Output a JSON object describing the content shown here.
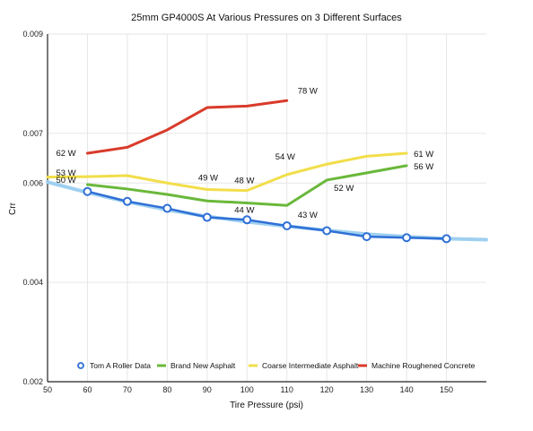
{
  "chart_data": {
    "type": "line",
    "title": "25mm GP4000S At Various Pressures on 3 Different Surfaces",
    "xlabel": "Tire Pressure (psi)",
    "ylabel": "Crr",
    "xlim": [
      50,
      160
    ],
    "ylim": [
      0.002,
      0.009
    ],
    "x_ticks": [
      50,
      60,
      70,
      80,
      90,
      100,
      110,
      120,
      130,
      140,
      150
    ],
    "y_ticks": [
      0.002,
      0.004,
      0.006,
      0.007,
      0.009
    ],
    "y_tick_labels": [
      "0.002",
      "0.004",
      "0.006",
      "0.007",
      "0.009"
    ],
    "grid": true,
    "legend_position": "bottom",
    "series": [
      {
        "name": "Tom A Roller Data",
        "color": "#2f6fd6",
        "marker": "circle",
        "x": [
          60,
          70,
          80,
          90,
          100,
          110,
          120,
          130,
          140,
          150
        ],
        "y": [
          0.00583,
          0.00563,
          0.00549,
          0.00531,
          0.00526,
          0.00514,
          0.00504,
          0.00492,
          0.0049,
          0.00488
        ]
      },
      {
        "name": "Brand New Asphalt",
        "color": "#6ab83a",
        "x": [
          60,
          70,
          80,
          90,
          100,
          110,
          120,
          140
        ],
        "y": [
          0.00597,
          0.00588,
          0.00577,
          0.00564,
          0.0056,
          0.00555,
          0.00606,
          0.00635
        ]
      },
      {
        "name": "Coarse Intermediate Asphalt",
        "color": "#f2de4a",
        "x": [
          50,
          60,
          70,
          80,
          90,
          100,
          110,
          120,
          130,
          140
        ],
        "y": [
          0.00612,
          0.00613,
          0.00615,
          0.006,
          0.00587,
          0.00585,
          0.00617,
          0.00638,
          0.00654,
          0.0066
        ]
      },
      {
        "name": "Machine Roughened Concrete",
        "color": "#d93b2b",
        "x": [
          60,
          70,
          80,
          90,
          100,
          110
        ],
        "y": [
          0.0066,
          0.00672,
          0.00707,
          0.00752,
          0.00755,
          0.00766
        ]
      }
    ],
    "trend_line": {
      "color": "#9fd0f0",
      "x": [
        50,
        60,
        70,
        80,
        90,
        100,
        110,
        120,
        130,
        140,
        150,
        160
      ],
      "y": [
        0.00602,
        0.00581,
        0.00562,
        0.00546,
        0.00533,
        0.00522,
        0.00513,
        0.00505,
        0.00497,
        0.00492,
        0.00488,
        0.00486
      ]
    },
    "annotations": [
      {
        "text": "62 W",
        "x": 60,
        "y": 0.0066
      },
      {
        "text": "78 W",
        "x": 110,
        "y": 0.00766
      },
      {
        "text": "53 W",
        "x": 60,
        "y": 0.00613
      },
      {
        "text": "50 W",
        "x": 60,
        "y": 0.00597
      },
      {
        "text": "49 W",
        "x": 90,
        "y": 0.00587
      },
      {
        "text": "48 W",
        "x": 100,
        "y": 0.00585
      },
      {
        "text": "54 W",
        "x": 110,
        "y": 0.00617
      },
      {
        "text": "44 W",
        "x": 100,
        "y": 0.0056
      },
      {
        "text": "43 W",
        "x": 110,
        "y": 0.00555
      },
      {
        "text": "52 W",
        "x": 120,
        "y": 0.00606
      },
      {
        "text": "61 W",
        "x": 140,
        "y": 0.0066
      },
      {
        "text": "56 W",
        "x": 140,
        "y": 0.00635
      }
    ]
  }
}
